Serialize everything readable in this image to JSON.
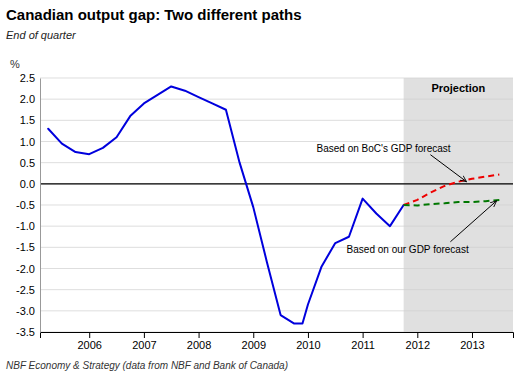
{
  "chart_data": {
    "type": "line",
    "title": "Canadian output gap: Two different paths",
    "subtitle": "End of quarter",
    "footer": "NBF Economy & Strategy (data from NBF and Bank of Canada)",
    "y_label": "%",
    "xlim": [
      2005.1,
      2013.75
    ],
    "xticks": [
      2006,
      2007,
      2008,
      2009,
      2010,
      2011,
      2012,
      2013
    ],
    "ylim": [
      -3.5,
      2.5
    ],
    "yticks": [
      -3.5,
      {
        "value": -3,
        "label": "-3.0"
      },
      -2.5,
      {
        "value": -2,
        "label": "-2.0"
      },
      -1.5,
      {
        "value": -1,
        "label": "-1.0"
      },
      -0.5,
      {
        "value": 0,
        "label": "0.0"
      },
      0.5,
      {
        "value": 1,
        "label": "1.0"
      },
      1.5,
      {
        "value": 2,
        "label": "2.0"
      },
      2.5
    ],
    "grid": true,
    "shaded_region": {
      "start": 2011.75,
      "label": "Projection",
      "color": "#e0e0e0"
    },
    "series": [
      {
        "color": "#0000dd",
        "line_style": "solid",
        "x": [
          2005.25,
          2005.5,
          2005.75,
          2006.0,
          2006.25,
          2006.5,
          2006.75,
          2007.0,
          2007.25,
          2007.5,
          2007.75,
          2008.0,
          2008.25,
          2008.5,
          2008.75,
          2009.0,
          2009.25,
          2009.5,
          2009.75,
          2009.9,
          2010.0,
          2010.25,
          2010.5,
          2010.75,
          2011.0,
          2011.25,
          2011.5,
          2011.75
        ],
        "values": [
          1.3,
          0.95,
          0.75,
          0.7,
          0.85,
          1.1,
          1.6,
          1.9,
          2.1,
          2.3,
          2.2,
          2.05,
          1.9,
          1.75,
          0.5,
          -0.55,
          -1.85,
          -3.1,
          -3.3,
          -3.3,
          -2.85,
          -1.95,
          -1.4,
          -1.25,
          -0.35,
          -0.7,
          -1.0,
          -0.5
        ]
      },
      {
        "color": "#ee0000",
        "line_style": "dashed",
        "x": [
          2011.75,
          2012.0,
          2012.25,
          2012.5,
          2012.75,
          2013.0,
          2013.25,
          2013.5
        ],
        "values": [
          -0.5,
          -0.38,
          -0.2,
          -0.05,
          0.05,
          0.12,
          0.17,
          0.22
        ]
      },
      {
        "color": "#007700",
        "line_style": "dashed",
        "x": [
          2011.75,
          2012.0,
          2012.25,
          2012.5,
          2012.75,
          2013.0,
          2013.25,
          2013.5
        ],
        "values": [
          -0.5,
          -0.51,
          -0.48,
          -0.46,
          -0.43,
          -0.43,
          -0.41,
          -0.38
        ]
      }
    ],
    "annotations": [
      {
        "text": "Based on BoC's GDP forecast",
        "x": 2012.9,
        "y": 0.05
      },
      {
        "text": "Based on our GDP forecast",
        "x": 2013.45,
        "y": -0.4
      }
    ]
  }
}
